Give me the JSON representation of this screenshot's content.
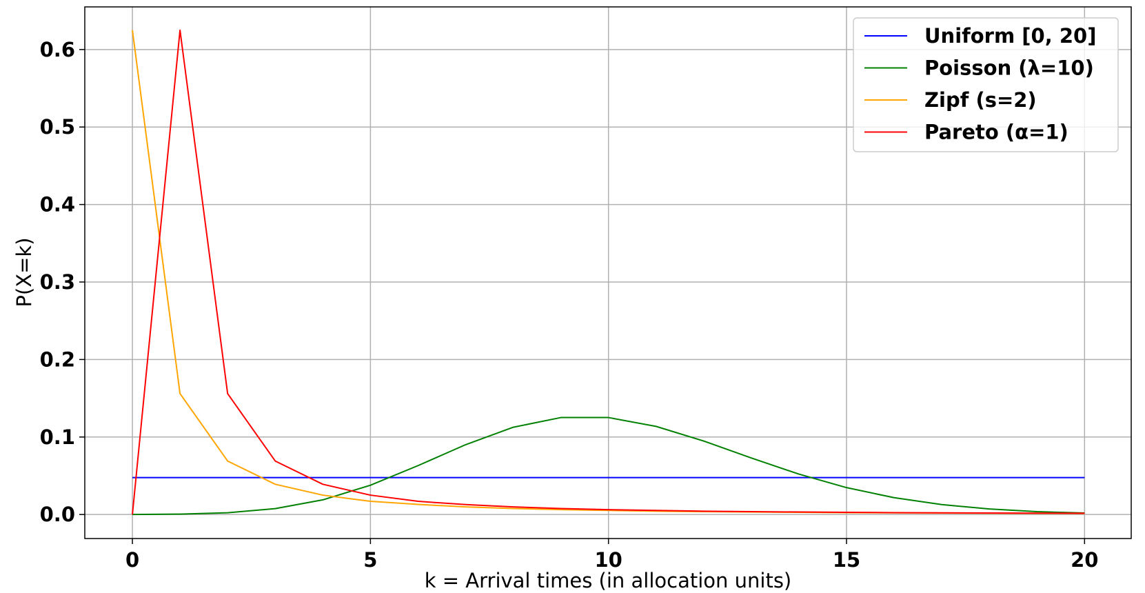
{
  "chart_data": {
    "type": "line",
    "title": "",
    "xlabel": "k = Arrival times (in allocation units)",
    "ylabel": "P(X=k)",
    "xlim": [
      -1,
      20.98
    ],
    "ylim": [
      -0.031,
      0.655
    ],
    "x": [
      0,
      1,
      2,
      3,
      4,
      5,
      6,
      7,
      8,
      9,
      10,
      11,
      12,
      13,
      14,
      15,
      16,
      17,
      18,
      19,
      20
    ],
    "x_ticks": [
      0,
      5,
      10,
      15,
      20
    ],
    "x_tick_labels": [
      "0",
      "5",
      "10",
      "15",
      "20"
    ],
    "y_ticks": [
      0.0,
      0.1,
      0.2,
      0.3,
      0.4,
      0.5,
      0.6
    ],
    "y_tick_labels": [
      "0.0",
      "0.1",
      "0.2",
      "0.3",
      "0.4",
      "0.5",
      "0.6"
    ],
    "grid": true,
    "legend_position": "top-right",
    "series": [
      {
        "name": "Uniform [0, 20]",
        "color": "#0000ff",
        "values": [
          0.0476,
          0.0476,
          0.0476,
          0.0476,
          0.0476,
          0.0476,
          0.0476,
          0.0476,
          0.0476,
          0.0476,
          0.0476,
          0.0476,
          0.0476,
          0.0476,
          0.0476,
          0.0476,
          0.0476,
          0.0476,
          0.0476,
          0.0476,
          0.0476
        ]
      },
      {
        "name": "Poisson (λ=10)",
        "color": "#008000",
        "values": [
          0.0,
          0.0005,
          0.0023,
          0.0076,
          0.0189,
          0.0378,
          0.0631,
          0.0901,
          0.1126,
          0.1251,
          0.1251,
          0.1137,
          0.0948,
          0.0729,
          0.0521,
          0.0347,
          0.0217,
          0.0128,
          0.0071,
          0.0037,
          0.0019
        ]
      },
      {
        "name": "Zipf (s=2)",
        "color": "#ffa500",
        "values": [
          0.625,
          0.156,
          0.069,
          0.039,
          0.025,
          0.017,
          0.013,
          0.0098,
          0.0077,
          0.0063,
          0.0052,
          0.0043,
          0.0037,
          0.0032,
          0.0028,
          0.0024,
          0.0022,
          0.0019,
          0.0017,
          0.0016,
          0.0014
        ]
      },
      {
        "name": "Pareto (α=1)",
        "color": "#ff0000",
        "values": [
          0.0,
          0.625,
          0.156,
          0.069,
          0.039,
          0.025,
          0.017,
          0.0128,
          0.0098,
          0.0077,
          0.0063,
          0.0052,
          0.0043,
          0.0037,
          0.0032,
          0.0028,
          0.0024,
          0.0022,
          0.0019,
          0.0017,
          0.0016
        ]
      }
    ]
  }
}
